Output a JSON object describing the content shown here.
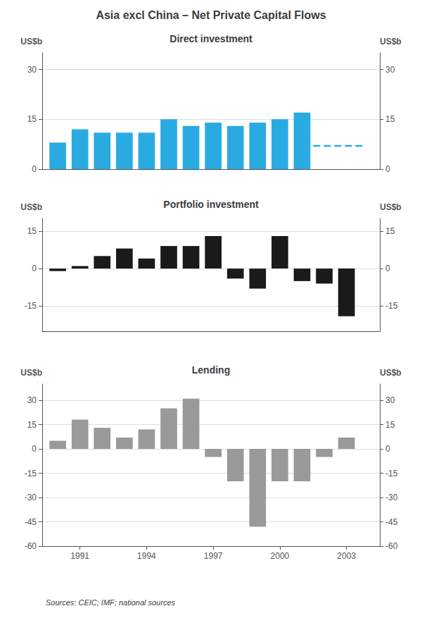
{
  "title": "Asia excl China – Net Private Capital Flows",
  "source": "Sources: CEIC; IMF; national sources",
  "chart_data": [
    {
      "type": "bar",
      "title": "Direct investment",
      "x": [
        1990,
        1991,
        1992,
        1993,
        1994,
        1995,
        1996,
        1997,
        1998,
        1999,
        2000,
        2001
      ],
      "series": [
        {
          "type": "bar",
          "color": "#29abe2",
          "values": [
            8,
            12,
            11,
            11,
            11,
            15,
            13,
            14,
            13,
            14,
            15,
            17
          ]
        },
        {
          "type": "line",
          "line_style": "dashed",
          "color": "#29abe2",
          "x": [
            2001.5,
            2003.8
          ],
          "values": [
            7,
            7
          ]
        }
      ],
      "xlim": [
        1989.3,
        2004.5
      ],
      "ylim": [
        0,
        35
      ],
      "yticks": [
        0,
        15,
        30
      ],
      "y2lim": [
        0,
        35
      ],
      "y2ticks": [
        0,
        15,
        30
      ],
      "ylabel": "US$b",
      "y2label": "US$b",
      "grid": true,
      "tick_labels": "y"
    },
    {
      "type": "bar",
      "title": "Portfolio investment",
      "x": [
        1990,
        1991,
        1992,
        1993,
        1994,
        1995,
        1996,
        1997,
        1998,
        1999,
        2000,
        2001,
        2002,
        2003
      ],
      "series": [
        {
          "type": "bar",
          "color": "#1a1a1a",
          "values": [
            -1,
            1,
            5,
            8,
            4,
            9,
            9,
            13,
            -4,
            -8,
            13,
            -5,
            -6,
            -19
          ]
        }
      ],
      "xlim": [
        1989.3,
        2004.5
      ],
      "ylim": [
        -25,
        20
      ],
      "yticks": [
        -15,
        0,
        15
      ],
      "y2lim": [
        -25,
        20
      ],
      "y2ticks": [
        -15,
        0,
        15
      ],
      "ylabel": "US$b",
      "y2label": "US$b",
      "grid": true,
      "tick_labels": "y"
    },
    {
      "type": "bar",
      "title": "Lending",
      "x": [
        1990,
        1991,
        1992,
        1993,
        1994,
        1995,
        1996,
        1997,
        1998,
        1999,
        2000,
        2001,
        2002,
        2003
      ],
      "series": [
        {
          "type": "bar",
          "color": "#999999",
          "values": [
            5,
            18,
            13,
            7,
            12,
            25,
            31,
            -5,
            -20,
            -48,
            -20,
            -20,
            -5,
            7
          ]
        }
      ],
      "xlim": [
        1989.3,
        2004.5
      ],
      "xticks": [
        1991,
        1994,
        1997,
        2000,
        2003
      ],
      "ylim": [
        -60,
        40
      ],
      "yticks": [
        -60,
        -45,
        -30,
        -15,
        0,
        15,
        30
      ],
      "y2lim": [
        -60,
        40
      ],
      "y2ticks": [
        -60,
        -45,
        -30,
        -15,
        0,
        15,
        30
      ],
      "ylabel": "US$b",
      "y2label": "US$b",
      "grid": true
    }
  ]
}
